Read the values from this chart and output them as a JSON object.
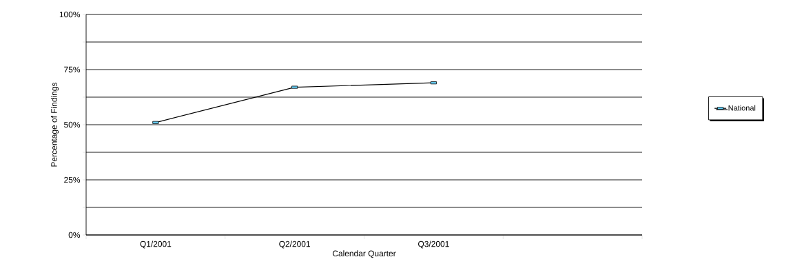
{
  "chart_data": {
    "type": "line",
    "xlabel": "Calendar Quarter",
    "ylabel": "Percentage of Findings",
    "categories": [
      "Q1/2001",
      "Q2/2001",
      "Q3/2001",
      null
    ],
    "series": [
      {
        "name": "National",
        "color": "#000000",
        "values": [
          51,
          67,
          69,
          null
        ]
      }
    ],
    "ylim": [
      0,
      100
    ],
    "yticks": [
      {
        "value": 0,
        "label": "0%"
      },
      {
        "value": 12.5,
        "label": null
      },
      {
        "value": 25,
        "label": "25%"
      },
      {
        "value": 37.5,
        "label": null
      },
      {
        "value": 50,
        "label": "50%"
      },
      {
        "value": 62.5,
        "label": null
      },
      {
        "value": 75,
        "label": "75%"
      },
      {
        "value": 87.5,
        "label": null
      },
      {
        "value": 100,
        "label": "100%"
      }
    ],
    "grid": "y",
    "legend": "right",
    "marker": "square",
    "line_style": "solid"
  }
}
